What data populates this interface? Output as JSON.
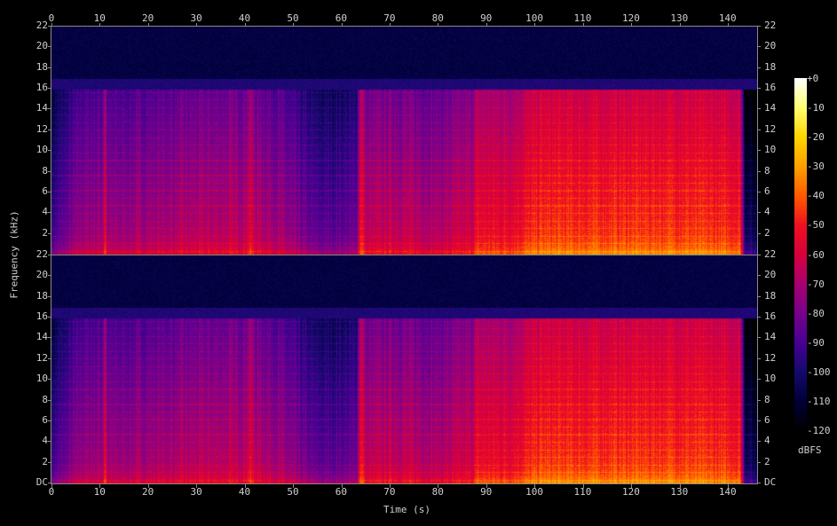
{
  "chart_data": {
    "type": "heatmap",
    "xlabel": "Time (s)",
    "ylabel": "Frequency (kHz)",
    "xlim": [
      0,
      146
    ],
    "ylim": [
      0,
      22
    ],
    "x_ticks": [
      "0",
      "10",
      "20",
      "30",
      "40",
      "50",
      "60",
      "70",
      "80",
      "90",
      "100",
      "110",
      "120",
      "130",
      "140"
    ],
    "y_ticks_top_channel": [
      "2",
      "4",
      "6",
      "8",
      "10",
      "12",
      "14",
      "16",
      "18",
      "20",
      "22"
    ],
    "y_ticks_bottom_channel": [
      "DC",
      "2",
      "4",
      "6",
      "8",
      "10",
      "12",
      "14",
      "16",
      "18",
      "20",
      "22"
    ],
    "channels": 2,
    "colorbar": {
      "label": "dBFS",
      "range": [
        -120,
        0
      ],
      "ticks": [
        "+0",
        "-10",
        "-20",
        "-30",
        "-40",
        "-50",
        "-60",
        "-70",
        "-80",
        "-90",
        "-100",
        "-110",
        "-120"
      ],
      "colors": [
        "#ffffff",
        "#ffff70",
        "#ffd400",
        "#ffa000",
        "#ff5a00",
        "#f01020",
        "#d8003c",
        "#a80070",
        "#78008c",
        "#480094",
        "#140a6c",
        "#000038",
        "#000000"
      ]
    },
    "approx_level_dbfs": {
      "time_s": [
        0,
        6,
        10.5,
        11,
        11.5,
        17,
        30,
        40,
        41,
        42,
        47,
        55,
        63,
        64,
        65,
        70,
        80,
        87,
        88,
        95,
        101,
        110,
        130,
        142.5,
        143.5,
        146
      ],
      "level": [
        -90,
        -72,
        -70,
        -50,
        -72,
        -70,
        -66,
        -64,
        -55,
        -64,
        -70,
        -85,
        -82,
        -45,
        -65,
        -62,
        -66,
        -60,
        -52,
        -52,
        -44,
        -44,
        -43,
        -46,
        -100,
        -105
      ]
    },
    "lowpass_cutoff_khz": 16
  }
}
